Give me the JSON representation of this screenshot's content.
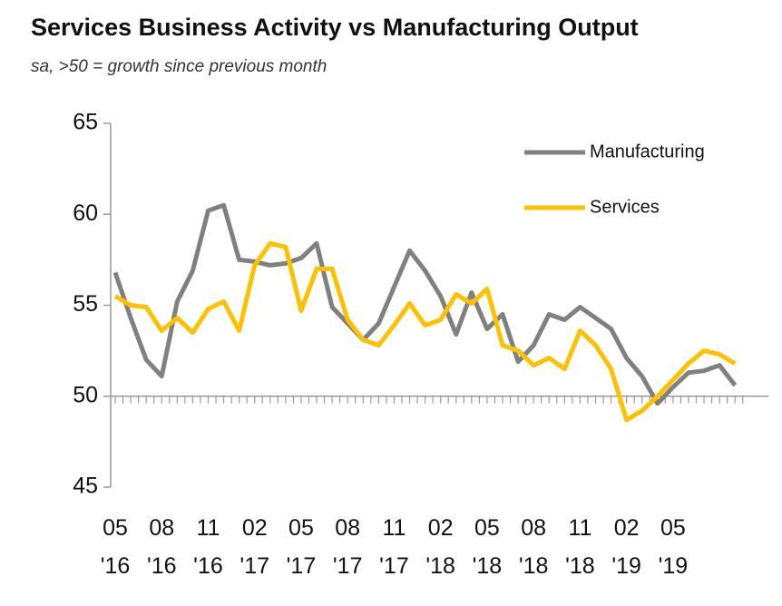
{
  "chart_data": {
    "type": "line",
    "title": "Services Business Activity vs Manufacturing Output",
    "subtitle": "sa, >50 = growth since previous month",
    "categories": [
      "05 '16",
      null,
      null,
      "08 '16",
      null,
      null,
      "11 '16",
      null,
      null,
      "02 '17",
      null,
      null,
      "05 '17",
      null,
      null,
      "08 '17",
      null,
      null,
      "11 '17",
      null,
      null,
      "02 '18",
      null,
      null,
      "05 '18",
      null,
      null,
      "08 '18",
      null,
      null,
      "11 '18",
      null,
      null,
      "02 '19",
      null,
      null,
      "05 '19",
      null,
      null,
      null,
      null
    ],
    "series": [
      {
        "name": "Manufacturing",
        "color": "#808080",
        "values": [
          56.8,
          54.3,
          52.0,
          51.1,
          55.2,
          56.9,
          60.2,
          60.5,
          57.5,
          57.4,
          57.2,
          57.3,
          57.6,
          58.4,
          54.9,
          54.0,
          53.1,
          54.0,
          56.0,
          58.0,
          56.9,
          55.5,
          53.4,
          55.7,
          53.7,
          54.5,
          51.9,
          52.8,
          54.5,
          54.2,
          54.9,
          54.3,
          53.7,
          52.1,
          51.1,
          49.6,
          50.5,
          51.3,
          51.4,
          51.7,
          50.6
        ]
      },
      {
        "name": "Services",
        "color": "#ffc000",
        "values": [
          55.5,
          55.0,
          54.9,
          53.6,
          54.3,
          53.5,
          54.8,
          55.2,
          53.6,
          57.2,
          58.4,
          58.2,
          54.7,
          57.0,
          57.0,
          54.2,
          53.1,
          52.8,
          53.9,
          55.1,
          53.9,
          54.2,
          55.6,
          55.1,
          55.9,
          52.8,
          52.5,
          51.7,
          52.1,
          51.5,
          53.6,
          52.8,
          51.5,
          48.7,
          49.2,
          50.0,
          50.9,
          51.8,
          52.5,
          52.3,
          51.8
        ]
      }
    ],
    "ylim": [
      45,
      65
    ],
    "yticks": [
      45,
      50,
      55,
      60,
      65
    ],
    "legend": "upper right"
  }
}
